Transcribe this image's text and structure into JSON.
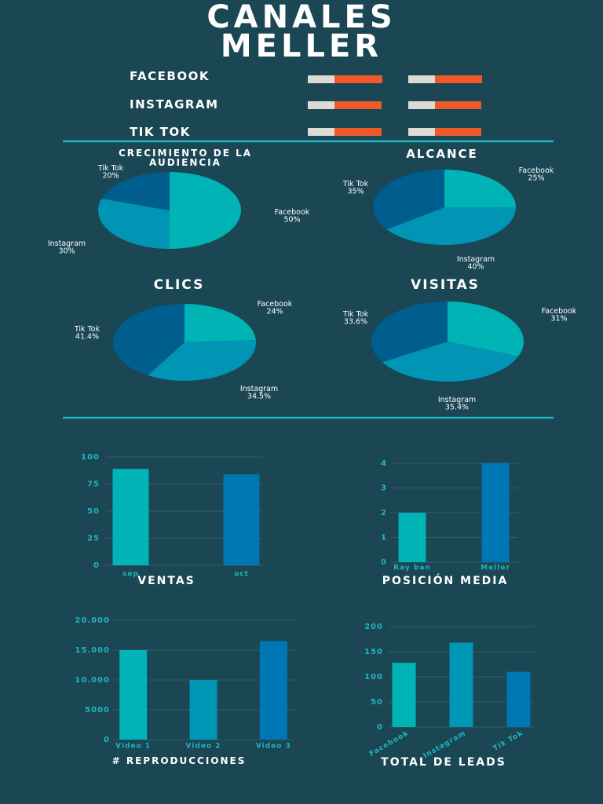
{
  "header": {
    "title": "CANALES MELLER"
  },
  "channels": [
    "FACEBOOK",
    "INSTAGRAM",
    "TIK TOK"
  ],
  "chart_data": [
    {
      "type": "pie",
      "title": "CRECIMIENTO DE LA AUDIENCIA",
      "categories": [
        "Facebook",
        "Instagram",
        "Tik Tok"
      ],
      "values": [
        50,
        30,
        20
      ],
      "value_labels": [
        "50%",
        "30%",
        "20%"
      ],
      "colors": [
        "#00b3b5",
        "#0094b5",
        "#005e8e"
      ]
    },
    {
      "type": "pie",
      "title": "ALCANCE",
      "categories": [
        "Facebook",
        "Instagram",
        "Tik Tok"
      ],
      "values": [
        25,
        40,
        35
      ],
      "value_labels": [
        "25%",
        "40%",
        "35%"
      ],
      "colors": [
        "#00b3b5",
        "#0094b5",
        "#005e8e"
      ]
    },
    {
      "type": "pie",
      "title": "CLICS",
      "categories": [
        "Facebook",
        "Instagram",
        "Tik Tok"
      ],
      "values": [
        24,
        34.5,
        41.4
      ],
      "value_labels": [
        "24%",
        "34.5%",
        "41.4%"
      ],
      "colors": [
        "#00b3b5",
        "#0094b5",
        "#005e8e"
      ]
    },
    {
      "type": "pie",
      "title": "VISITAS",
      "categories": [
        "Facebook",
        "Instagram",
        "Tik Tok"
      ],
      "values": [
        31,
        35.4,
        33.6
      ],
      "value_labels": [
        "31%",
        "35.4%",
        "33.6%"
      ],
      "colors": [
        "#00b3b5",
        "#0094b5",
        "#005e8e"
      ]
    },
    {
      "type": "bar",
      "title": "VENTAS",
      "categories": [
        "sep",
        "oct"
      ],
      "values": [
        89,
        84
      ],
      "colors": [
        "#00b3b5",
        "#0077b5"
      ],
      "ylim": [
        0,
        100
      ],
      "yticks": [
        0,
        25,
        50,
        75,
        100
      ],
      "grid": true
    },
    {
      "type": "bar",
      "title": "POSICIÓN MEDIA",
      "categories": [
        "Ray ban",
        "Meller"
      ],
      "values": [
        2,
        4
      ],
      "colors": [
        "#00b3b5",
        "#0077b5"
      ],
      "ylim": [
        0,
        4
      ],
      "yticks": [
        0,
        1,
        2,
        3,
        4
      ],
      "grid": true
    },
    {
      "type": "bar",
      "title": "# REPRODUCCIONES",
      "categories": [
        "Video 1",
        "Video 2",
        "Video 3"
      ],
      "values": [
        15000,
        10000,
        16500
      ],
      "colors": [
        "#00b3b5",
        "#0096b5",
        "#0077b5"
      ],
      "ylim": [
        0,
        20000
      ],
      "yticks": [
        0,
        5000,
        {
          "value": 10000,
          "label": "10.000"
        },
        {
          "value": 15000,
          "label": "15.000"
        },
        {
          "value": 20000,
          "label": "20.000"
        }
      ],
      "grid": true
    },
    {
      "type": "bar",
      "title": "TOTAL DE LEADS",
      "categories": [
        "Facebook",
        "Instagram",
        "Tik Tok"
      ],
      "values": [
        128,
        168,
        110
      ],
      "colors": [
        "#00b3b5",
        "#0096b5",
        "#0077b5"
      ],
      "ylim": [
        0,
        200
      ],
      "yticks": [
        0,
        50,
        100,
        150,
        200
      ],
      "grid": true
    }
  ]
}
